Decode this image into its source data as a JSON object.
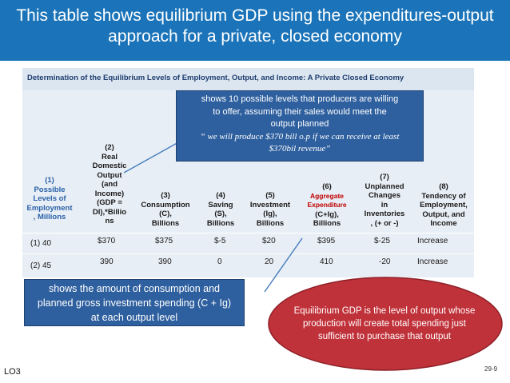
{
  "slide": {
    "title_line1": "This table shows equilibrium GDP using the expenditures-output",
    "title_line2": "approach for a private, closed economy",
    "lo_label": "LO3",
    "page_number": "29-9"
  },
  "table": {
    "caption": "Determination of the Equilibrium Levels of Employment, Output, and Income: A Private Closed Economy",
    "columns": [
      {
        "lines": [
          "(1)",
          "Possible",
          "Levels of",
          "Employment",
          ", Millions"
        ]
      },
      {
        "lines": [
          "(2)",
          "Real",
          "Domestic",
          "Output",
          "(and",
          "Income)",
          "(GDP =",
          "DI),*Billio",
          "ns"
        ]
      },
      {
        "lines": [
          "(3)",
          "Consumption",
          "(C),",
          "Billions"
        ]
      },
      {
        "lines": [
          "(4)",
          "Saving",
          "(S),",
          "Billions"
        ]
      },
      {
        "lines": [
          "(5)",
          "Investment",
          "(Ig),",
          "Billions"
        ]
      },
      {
        "lines": [
          "(6)",
          "Aggregate",
          "Expenditure",
          "(C+Ig),",
          "Billions"
        ]
      },
      {
        "lines": [
          "(7)",
          "Unplanned",
          "Changes",
          "in",
          "Inventories",
          ", (+ or -)"
        ]
      },
      {
        "lines": [
          "(8)",
          "Tendency of",
          "Employment,",
          "Output, and",
          "Income"
        ]
      }
    ],
    "rows": [
      [
        "(1) 40",
        "$370",
        "$375",
        "$-5",
        "$20",
        "$395",
        "$-25",
        "Increase"
      ],
      [
        "(2) 45",
        "390",
        "390",
        "0",
        "20",
        "410",
        "-20",
        "Increase"
      ]
    ]
  },
  "callouts": {
    "top": {
      "line1": "shows 10 possible levels that producers are willing",
      "line2": "to offer, assuming their sales would meet the",
      "line3": "output planned",
      "quote1": "“ we will produce $370 bill o.p if we can receive at least",
      "quote2": "$370bil revenue”"
    },
    "bottom": {
      "line1": "shows the amount of consumption and",
      "line2": "planned gross investment spending (C + Ig)",
      "line3": "at each output level"
    },
    "ellipse": {
      "line1": "Equilibrium GDP is the level of output whose",
      "line2": "production will create total spending just",
      "line3": "sufficient to purchase that output"
    }
  },
  "colors": {
    "title_bar": "#1b74b9",
    "callout_blue": "#2e5f9e",
    "ellipse_red": "#c0323a",
    "aggregate_red": "#c00000"
  }
}
